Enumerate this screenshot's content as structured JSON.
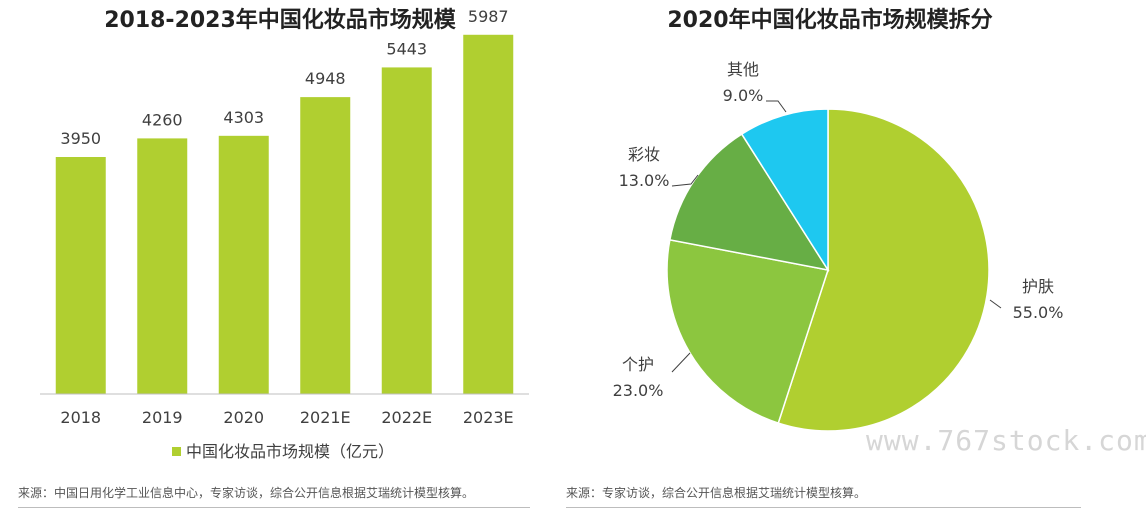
{
  "left_chart": {
    "title": "2018-2023年中国化妆品市场规模",
    "source": "来源：中国日用化学工业信息中心，专家访谈，综合公开信息根据艾瑞统计模型核算。"
  },
  "right_chart": {
    "title": "2020年中国化妆品市场规模拆分",
    "source": "来源：专家访谈，综合公开信息根据艾瑞统计模型核算。"
  },
  "watermark": "www.767stock.com",
  "colors": {
    "bar": "#b0cf30",
    "pie": {
      "护肤": "#b0cf30",
      "个护": "#8cc63f",
      "彩妆": "#67ae45",
      "其他": "#1ec8f0"
    }
  },
  "chart_data": [
    {
      "type": "bar",
      "title": "2018-2023年中国化妆品市场规模",
      "categories": [
        "2018",
        "2019",
        "2020",
        "2021E",
        "2022E",
        "2023E"
      ],
      "series": [
        {
          "name": "中国化妆品市场规模（亿元）",
          "values": [
            3950,
            4260,
            4303,
            4948,
            5443,
            5987
          ]
        }
      ],
      "data_labels": [
        "3950",
        "4260",
        "4303",
        "4948",
        "5443",
        "5987"
      ],
      "ylim": [
        0,
        6500
      ],
      "grid": false,
      "legend": "bottom"
    },
    {
      "type": "pie",
      "title": "2020年中国化妆品市场规模拆分",
      "slices": [
        {
          "label": "护肤",
          "value": 55.0,
          "display": "55.0%"
        },
        {
          "label": "个护",
          "value": 23.0,
          "display": "23.0%"
        },
        {
          "label": "彩妆",
          "value": 13.0,
          "display": "13.0%"
        },
        {
          "label": "其他",
          "value": 9.0,
          "display": "9.0%"
        }
      ]
    }
  ]
}
